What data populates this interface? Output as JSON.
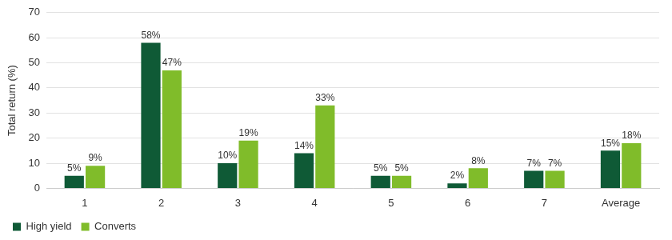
{
  "chart_data": {
    "type": "bar",
    "y_label": "Total return (%)",
    "categories": [
      "1",
      "2",
      "3",
      "4",
      "5",
      "6",
      "7",
      "Average"
    ],
    "series": [
      {
        "name": "High yield",
        "color": "#0f5a36",
        "values": [
          5,
          58,
          10,
          14,
          5,
          2,
          7,
          15
        ],
        "value_labels": [
          "5%",
          "58%",
          "10%",
          "14%",
          "5%",
          "2%",
          "7%",
          "15%"
        ]
      },
      {
        "name": "Converts",
        "color": "#80bc2a",
        "values": [
          9,
          47,
          19,
          33,
          5,
          8,
          7,
          18
        ],
        "value_labels": [
          "9%",
          "47%",
          "19%",
          "33%",
          "5%",
          "8%",
          "7%",
          "18%"
        ]
      }
    ],
    "ylim": [
      0,
      70
    ],
    "yticks": [
      0,
      10,
      20,
      30,
      40,
      50,
      60,
      70
    ],
    "grid": true,
    "legend": "bottom",
    "data_labels": true
  }
}
